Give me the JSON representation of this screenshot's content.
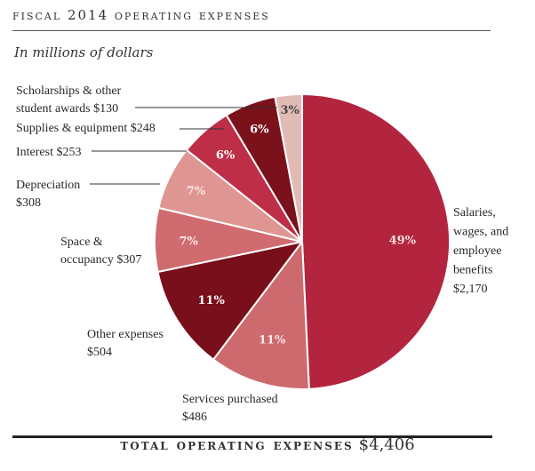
{
  "header": {
    "title": "fiscal 2014 operating expenses",
    "subtitle": "In millions of dollars"
  },
  "footer": {
    "label": "total operating expenses",
    "amount": "$4,406"
  },
  "chart_data": {
    "type": "pie",
    "total": 4406,
    "unit": "millions of dollars",
    "slices": [
      {
        "label": "Salaries, wages, and employee benefits",
        "value": 2170,
        "amount_text": "$2,170",
        "percent_text": "49%",
        "color": "#b3253f",
        "label_color": "#f4dede"
      },
      {
        "label": "Services purchased",
        "value": 486,
        "amount_text": "$486",
        "percent_text": "11%",
        "color": "#cd6a6e",
        "label_color": "#fbeaea"
      },
      {
        "label": "Other expenses",
        "value": 504,
        "amount_text": "$504",
        "percent_text": "11%",
        "color": "#780f1a",
        "label_color": "#ffffff"
      },
      {
        "label": "Space & occupancy",
        "value": 307,
        "amount_text": "$307",
        "percent_text": "7%",
        "color": "#d06b6f",
        "label_color": "#fbeaea"
      },
      {
        "label": "Depreciation",
        "value": 308,
        "amount_text": "$308",
        "percent_text": "7%",
        "color": "#df9592",
        "label_color": "#fbeaea"
      },
      {
        "label": "Interest",
        "value": 253,
        "amount_text": "$253",
        "percent_text": "6%",
        "color": "#be2e47",
        "label_color": "#ffffff"
      },
      {
        "label": "Supplies & equipment",
        "value": 248,
        "amount_text": "$248",
        "percent_text": "6%",
        "color": "#7a111b",
        "label_color": "#ffffff"
      },
      {
        "label": "Scholarships & other student awards",
        "value": 130,
        "amount_text": "$130",
        "percent_text": "3%",
        "color": "#e2bbb5",
        "label_color": "#444444"
      }
    ]
  }
}
